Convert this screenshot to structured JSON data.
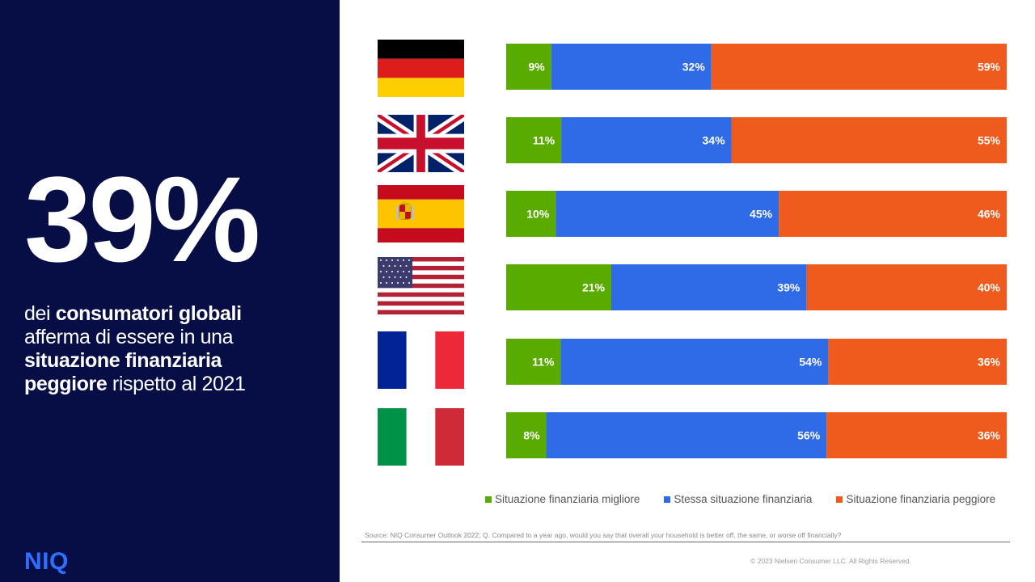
{
  "panel": {
    "stat": "39%",
    "headline_parts": [
      {
        "text": "dei ",
        "bold": false
      },
      {
        "text": "consumatori globali",
        "bold": true
      },
      {
        "text": " afferma di essere in una ",
        "bold": false
      },
      {
        "text": "situazione finanziaria peggiore",
        "bold": true
      },
      {
        "text": " rispetto al 2021",
        "bold": false
      }
    ],
    "logo": "NIQ"
  },
  "colors": {
    "panel_bg": "#070d45",
    "better": "#5aab00",
    "same": "#2f6be6",
    "worse": "#ee5b1c",
    "logo": "#2f6fff"
  },
  "flags": [
    {
      "country": "germany",
      "icon": "germany-flag-icon"
    },
    {
      "country": "united-kingdom",
      "icon": "uk-flag-icon"
    },
    {
      "country": "spain",
      "icon": "spain-flag-icon"
    },
    {
      "country": "united-states",
      "icon": "usa-flag-icon"
    },
    {
      "country": "france",
      "icon": "france-flag-icon"
    },
    {
      "country": "italy",
      "icon": "italy-flag-icon"
    }
  ],
  "chart_data": {
    "type": "bar",
    "orientation": "horizontal",
    "stacked": true,
    "categories": [
      "Germany",
      "United Kingdom",
      "Spain",
      "United States",
      "France",
      "Italy"
    ],
    "series": [
      {
        "name": "Situazione finanziaria migliore",
        "values": [
          9,
          11,
          10,
          21,
          11,
          8
        ],
        "color": "#5aab00"
      },
      {
        "name": "Stessa situazione finanziaria",
        "values": [
          32,
          34,
          45,
          39,
          54,
          56
        ],
        "color": "#2f6be6"
      },
      {
        "name": "Situazione finanziaria peggiore",
        "values": [
          59,
          55,
          46,
          40,
          36,
          36
        ],
        "color": "#ee5b1c"
      }
    ],
    "value_suffix": "%",
    "legend_position": "bottom",
    "grid": false
  },
  "footer": {
    "source": "Source: NIQ Consumer Outlook 2022; Q. Compared to a year ago, would you say that overall your household is better off, the same, or worse off financially?",
    "copyright": "© 2023 Nielsen Consumer LLC. All Rights Reserved."
  }
}
